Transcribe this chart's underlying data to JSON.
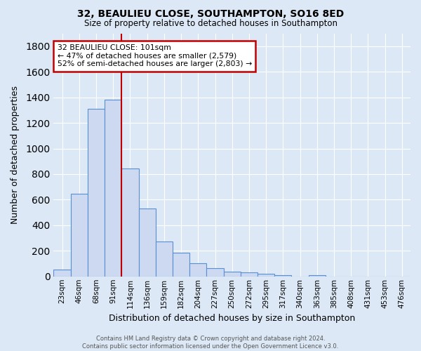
{
  "title_line1": "32, BEAULIEU CLOSE, SOUTHAMPTON, SO16 8ED",
  "title_line2": "Size of property relative to detached houses in Southampton",
  "xlabel": "Distribution of detached houses by size in Southampton",
  "ylabel": "Number of detached properties",
  "categories": [
    "23sqm",
    "46sqm",
    "68sqm",
    "91sqm",
    "114sqm",
    "136sqm",
    "159sqm",
    "182sqm",
    "204sqm",
    "227sqm",
    "250sqm",
    "272sqm",
    "295sqm",
    "317sqm",
    "340sqm",
    "363sqm",
    "385sqm",
    "408sqm",
    "431sqm",
    "453sqm",
    "476sqm"
  ],
  "values": [
    55,
    645,
    1310,
    1380,
    845,
    530,
    275,
    185,
    105,
    65,
    37,
    33,
    18,
    8,
    0,
    12,
    0,
    0,
    0,
    0,
    0
  ],
  "bar_color": "#ccd9f0",
  "bar_edge_color": "#5b8fd4",
  "vline_color": "#c00000",
  "annotation_text": "32 BEAULIEU CLOSE: 101sqm\n← 47% of detached houses are smaller (2,579)\n52% of semi-detached houses are larger (2,803) →",
  "annotation_box_color": "white",
  "annotation_box_edge_color": "#c00000",
  "ylim": [
    0,
    1900
  ],
  "yticks": [
    0,
    200,
    400,
    600,
    800,
    1000,
    1200,
    1400,
    1600,
    1800
  ],
  "background_color": "#dce8f5",
  "grid_color": "#ffffff",
  "footer": "Contains HM Land Registry data © Crown copyright and database right 2024.\nContains public sector information licensed under the Open Government Licence v3.0."
}
